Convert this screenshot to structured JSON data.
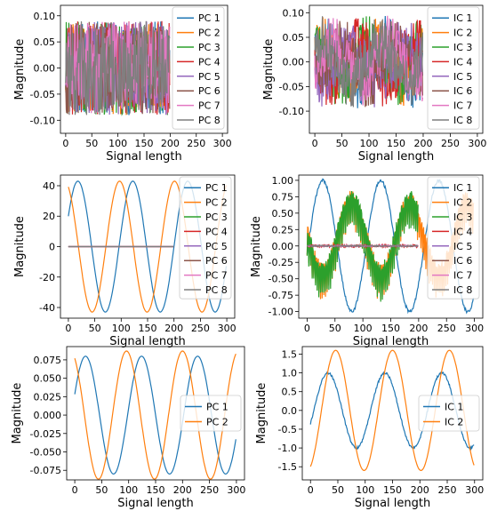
{
  "chart_data": [
    {
      "type": "line",
      "kind": "noise",
      "xlabel": "Signal length",
      "ylabel": "Magnitude",
      "xlim": [
        -10,
        310
      ],
      "ylim": [
        -0.125,
        0.12
      ],
      "xticks": [
        0,
        50,
        100,
        150,
        200,
        250,
        300
      ],
      "yticks": [
        -0.1,
        -0.05,
        0.0,
        0.05,
        0.1
      ],
      "ytick_labels": [
        "-0.10",
        "-0.05",
        "0.00",
        "0.05",
        "0.10"
      ],
      "legend": "right",
      "x_range": [
        0,
        199
      ],
      "amplitude": 0.09,
      "series": [
        {
          "name": "PC 1",
          "color": "#1f77b4"
        },
        {
          "name": "PC 2",
          "color": "#ff7f0e"
        },
        {
          "name": "PC 3",
          "color": "#2ca02c"
        },
        {
          "name": "PC 4",
          "color": "#d62728"
        },
        {
          "name": "PC 5",
          "color": "#9467bd"
        },
        {
          "name": "PC 6",
          "color": "#8c564b"
        },
        {
          "name": "PC 7",
          "color": "#e377c2"
        },
        {
          "name": "PC 8",
          "color": "#7f7f7f"
        }
      ]
    },
    {
      "type": "line",
      "kind": "noise-sine",
      "xlabel": "Signal length",
      "ylabel": "Magnitude",
      "xlim": [
        -10,
        310
      ],
      "ylim": [
        -0.145,
        0.115
      ],
      "xticks": [
        0,
        50,
        100,
        150,
        200,
        250,
        300
      ],
      "yticks": [
        -0.1,
        -0.05,
        0.0,
        0.05,
        0.1
      ],
      "ytick_labels": [
        "-0.10",
        "-0.05",
        "0.00",
        "0.05",
        "0.10"
      ],
      "legend": "right",
      "x_range": [
        0,
        199
      ],
      "amplitude": 0.09,
      "series": [
        {
          "name": "IC 1",
          "color": "#1f77b4"
        },
        {
          "name": "IC 2",
          "color": "#ff7f0e"
        },
        {
          "name": "IC 3",
          "color": "#2ca02c"
        },
        {
          "name": "IC 4",
          "color": "#d62728"
        },
        {
          "name": "IC 5",
          "color": "#9467bd"
        },
        {
          "name": "IC 6",
          "color": "#8c564b"
        },
        {
          "name": "IC 7",
          "color": "#e377c2"
        },
        {
          "name": "IC 8",
          "color": "#7f7f7f"
        }
      ]
    },
    {
      "type": "line",
      "kind": "sine",
      "xlabel": "Signal length",
      "ylabel": "Magnitude",
      "xlim": [
        -15,
        315
      ],
      "ylim": [
        -47,
        47
      ],
      "xticks": [
        0,
        50,
        100,
        150,
        200,
        250,
        300
      ],
      "yticks": [
        -40,
        -20,
        0,
        20,
        40
      ],
      "ytick_labels": [
        "-40",
        "-20",
        "0",
        "20",
        "40"
      ],
      "legend": "right",
      "period": 104,
      "series": [
        {
          "name": "PC 1",
          "color": "#1f77b4",
          "amplitude": 43,
          "peak_x": 18,
          "x_range": [
            0,
            299
          ]
        },
        {
          "name": "PC 2",
          "color": "#ff7f0e",
          "amplitude": 43,
          "peak_x": 97,
          "x_range": [
            0,
            299
          ]
        },
        {
          "name": "PC 3",
          "color": "#2ca02c",
          "amplitude": 0,
          "x_range": [
            0,
            199
          ]
        },
        {
          "name": "PC 4",
          "color": "#d62728",
          "amplitude": 0,
          "x_range": [
            0,
            199
          ]
        },
        {
          "name": "PC 5",
          "color": "#9467bd",
          "amplitude": 0,
          "x_range": [
            0,
            199
          ]
        },
        {
          "name": "PC 6",
          "color": "#8c564b",
          "amplitude": 0,
          "x_range": [
            0,
            199
          ]
        },
        {
          "name": "PC 7",
          "color": "#e377c2",
          "amplitude": 0,
          "x_range": [
            0,
            199
          ]
        },
        {
          "name": "PC 8",
          "color": "#7f7f7f",
          "amplitude": 0,
          "x_range": [
            0,
            199
          ]
        }
      ]
    },
    {
      "type": "line",
      "kind": "sine",
      "xlabel": "Signal length",
      "ylabel": "Magnitude",
      "xlim": [
        -15,
        315
      ],
      "ylim": [
        -1.1,
        1.08
      ],
      "xticks": [
        0,
        50,
        100,
        150,
        200,
        250,
        300
      ],
      "yticks": [
        -1.0,
        -0.75,
        -0.5,
        -0.25,
        0.0,
        0.25,
        0.5,
        0.75,
        1.0
      ],
      "ytick_labels": [
        "-1.00",
        "-0.75",
        "-0.50",
        "-0.25",
        "0.00",
        "0.25",
        "0.50",
        "0.75",
        "1.00"
      ],
      "legend": "right",
      "period": 104,
      "series": [
        {
          "name": "IC 1",
          "color": "#1f77b4",
          "amplitude": 1.0,
          "peak_x": 28,
          "x_range": [
            0,
            299
          ],
          "jitter": 0.025
        },
        {
          "name": "IC 2",
          "color": "#ff7f0e",
          "amplitude": 0.55,
          "peak_x": 80,
          "x_range": [
            0,
            299
          ],
          "saw": 0.3
        },
        {
          "name": "IC 3",
          "color": "#2ca02c",
          "amplitude": 0.55,
          "peak_x": 80,
          "x_range": [
            0,
            199
          ],
          "saw": 0.3
        },
        {
          "name": "IC 4",
          "color": "#d62728",
          "amplitude": 0,
          "x_range": [
            0,
            199
          ],
          "jitter": 0.02
        },
        {
          "name": "IC 5",
          "color": "#9467bd",
          "amplitude": 0,
          "x_range": [
            0,
            199
          ],
          "jitter": 0.01
        },
        {
          "name": "IC 6",
          "color": "#8c564b",
          "amplitude": 0,
          "x_range": [
            0,
            199
          ],
          "jitter": 0.01
        },
        {
          "name": "IC 7",
          "color": "#e377c2",
          "amplitude": 0,
          "x_range": [
            0,
            199
          ],
          "jitter": 0.01
        },
        {
          "name": "IC 8",
          "color": "#7f7f7f",
          "amplitude": 0,
          "x_range": [
            0,
            199
          ],
          "jitter": 0.01
        }
      ]
    },
    {
      "type": "line",
      "kind": "sine",
      "xlabel": "Signal length",
      "ylabel": "Magnitude",
      "xlim": [
        -15,
        315
      ],
      "ylim": [
        -0.088,
        0.093
      ],
      "xticks": [
        0,
        50,
        100,
        150,
        200,
        250,
        300
      ],
      "yticks": [
        -0.075,
        -0.05,
        -0.025,
        0.0,
        0.025,
        0.05,
        0.075
      ],
      "ytick_labels": [
        "-0.075",
        "-0.050",
        "-0.025",
        "0.000",
        "0.025",
        "0.050",
        "0.075"
      ],
      "legend": "right",
      "period": 104,
      "series": [
        {
          "name": "PC 1",
          "color": "#1f77b4",
          "amplitude": 0.08,
          "peak_x": 20,
          "x_range": [
            0,
            299
          ]
        },
        {
          "name": "PC 2",
          "color": "#ff7f0e",
          "amplitude": 0.087,
          "peak_x": 96,
          "x_range": [
            0,
            299
          ]
        }
      ]
    },
    {
      "type": "line",
      "kind": "sine",
      "xlabel": "Signal length",
      "ylabel": "Magnitude",
      "xlim": [
        -15,
        315
      ],
      "ylim": [
        -1.85,
        1.7
      ],
      "xticks": [
        0,
        50,
        100,
        150,
        200,
        250,
        300
      ],
      "yticks": [
        -1.5,
        -1.0,
        -0.5,
        0.0,
        0.5,
        1.0,
        1.5
      ],
      "ytick_labels": [
        "-1.5",
        "-1.0",
        "-0.5",
        "0.0",
        "0.5",
        "1.0",
        "1.5"
      ],
      "legend": "right",
      "period": 104,
      "series": [
        {
          "name": "IC 1",
          "color": "#1f77b4",
          "amplitude": 1.0,
          "peak_x": 32,
          "x_range": [
            0,
            299
          ],
          "jitter": 0.03
        },
        {
          "name": "IC 2",
          "color": "#ff7f0e",
          "amplitude": 1.6,
          "peak_x": 46,
          "x_range": [
            0,
            299
          ]
        }
      ]
    }
  ]
}
